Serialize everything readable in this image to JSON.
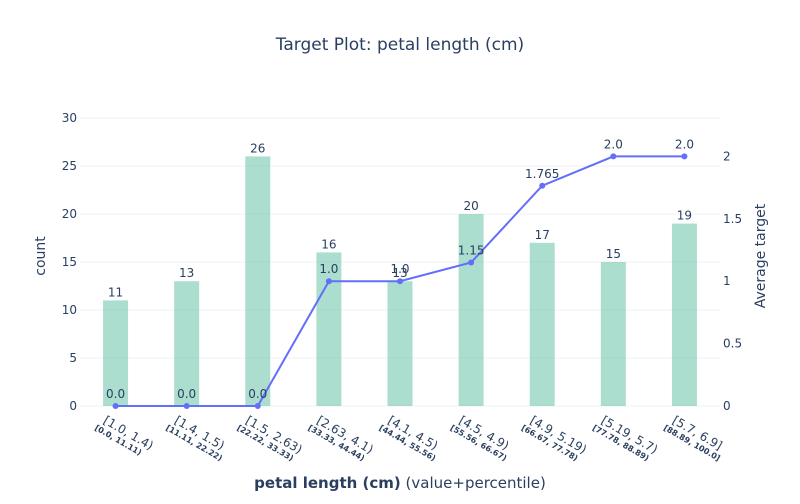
{
  "chart_data": {
    "type": "bar+line",
    "title": "Target Plot: petal length (cm)",
    "xlabel_bold": "petal length (cm)",
    "xlabel_rest": " (value+percentile)",
    "ylabel_left": "count",
    "ylabel_right": "Average target",
    "ylim_left": [
      0,
      30
    ],
    "ylim_right": [
      0,
      2.308
    ],
    "yticks_left": [
      0,
      5,
      10,
      15,
      20,
      25,
      30
    ],
    "yticks_right": [
      0,
      0.5,
      1,
      1.5,
      2
    ],
    "ytick_labels_right": [
      "0",
      "0.5",
      "1",
      "1.5",
      "2"
    ],
    "grid": true,
    "categories": [
      "[1.0, 1.4)",
      "[1.4, 1.5)",
      "[1.5, 2.63)",
      "[2.63, 4.1)",
      "[4.1, 4.5)",
      "[4.5, 4.9)",
      "[4.9, 5.19)",
      "[5.19, 5.7)",
      "[5.7, 6.9]"
    ],
    "percentiles": [
      "[0.0, 11.11)",
      "[11.11, 22.22)",
      "[22.22, 33.33)",
      "[33.33, 44.44)",
      "[44.44, 55.56)",
      "[55.56, 66.67)",
      "[66.67, 77.78)",
      "[77.78, 88.89)",
      "[88.89, 100.0]"
    ],
    "series": [
      {
        "type": "bar",
        "axis": "left",
        "values": [
          11,
          13,
          26,
          16,
          13,
          20,
          17,
          15,
          19
        ],
        "labels": [
          "11",
          "13",
          "26",
          "16",
          "13",
          "20",
          "17",
          "15",
          "19"
        ]
      },
      {
        "type": "line",
        "axis": "right",
        "values": [
          0.0,
          0.0,
          0.0,
          1.0,
          1.0,
          1.15,
          1.765,
          2.0,
          2.0
        ],
        "labels": [
          "0.0",
          "0.0",
          "0.0",
          "1.0",
          "1.0",
          "1.15",
          "1.765",
          "2.0",
          "2.0"
        ]
      }
    ],
    "colors": {
      "bar": "#66c2a5",
      "line": "#636efa",
      "title": "#2a3f5f",
      "text": "#2a3f5f",
      "grid": "#eef1f5"
    }
  }
}
